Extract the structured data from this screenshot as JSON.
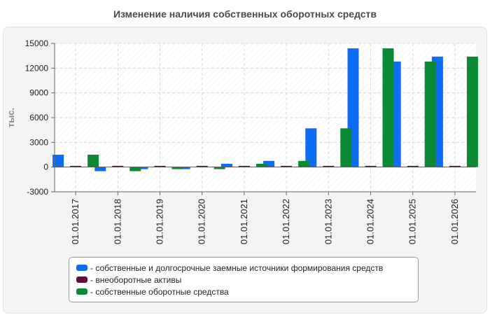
{
  "chart_data": {
    "type": "bar",
    "title": "Изменение наличия собственных оборотных средств",
    "ylabel": "тыс.",
    "xlabel": "",
    "ylim": [
      -3000,
      15000
    ],
    "yticks": [
      -3000,
      0,
      3000,
      6000,
      9000,
      12000,
      15000
    ],
    "grid": true,
    "legend_position": "bottom",
    "categories": [
      "01.01.2017",
      "01.01.2018",
      "01.01.2019",
      "01.01.2020",
      "01.01.2021",
      "01.01.2022",
      "01.01.2023",
      "01.01.2024",
      "01.01.2025",
      "01.01.2026"
    ],
    "series": [
      {
        "name": "- собственные и долгосрочные заемные источники формирования средств",
        "color": "#0f6cf5",
        "values": [
          1500,
          -500,
          -250,
          -250,
          400,
          750,
          4700,
          14400,
          12800,
          13400
        ]
      },
      {
        "name": "- внеоборотные активы",
        "color": "#6b0a3a",
        "values": [
          150,
          150,
          150,
          150,
          150,
          150,
          150,
          150,
          150,
          150
        ]
      },
      {
        "name": "- собственные оборотные средства",
        "color": "#0b8a34",
        "values": [
          1500,
          -500,
          -250,
          -250,
          400,
          750,
          4700,
          14400,
          12800,
          13400
        ]
      }
    ]
  }
}
